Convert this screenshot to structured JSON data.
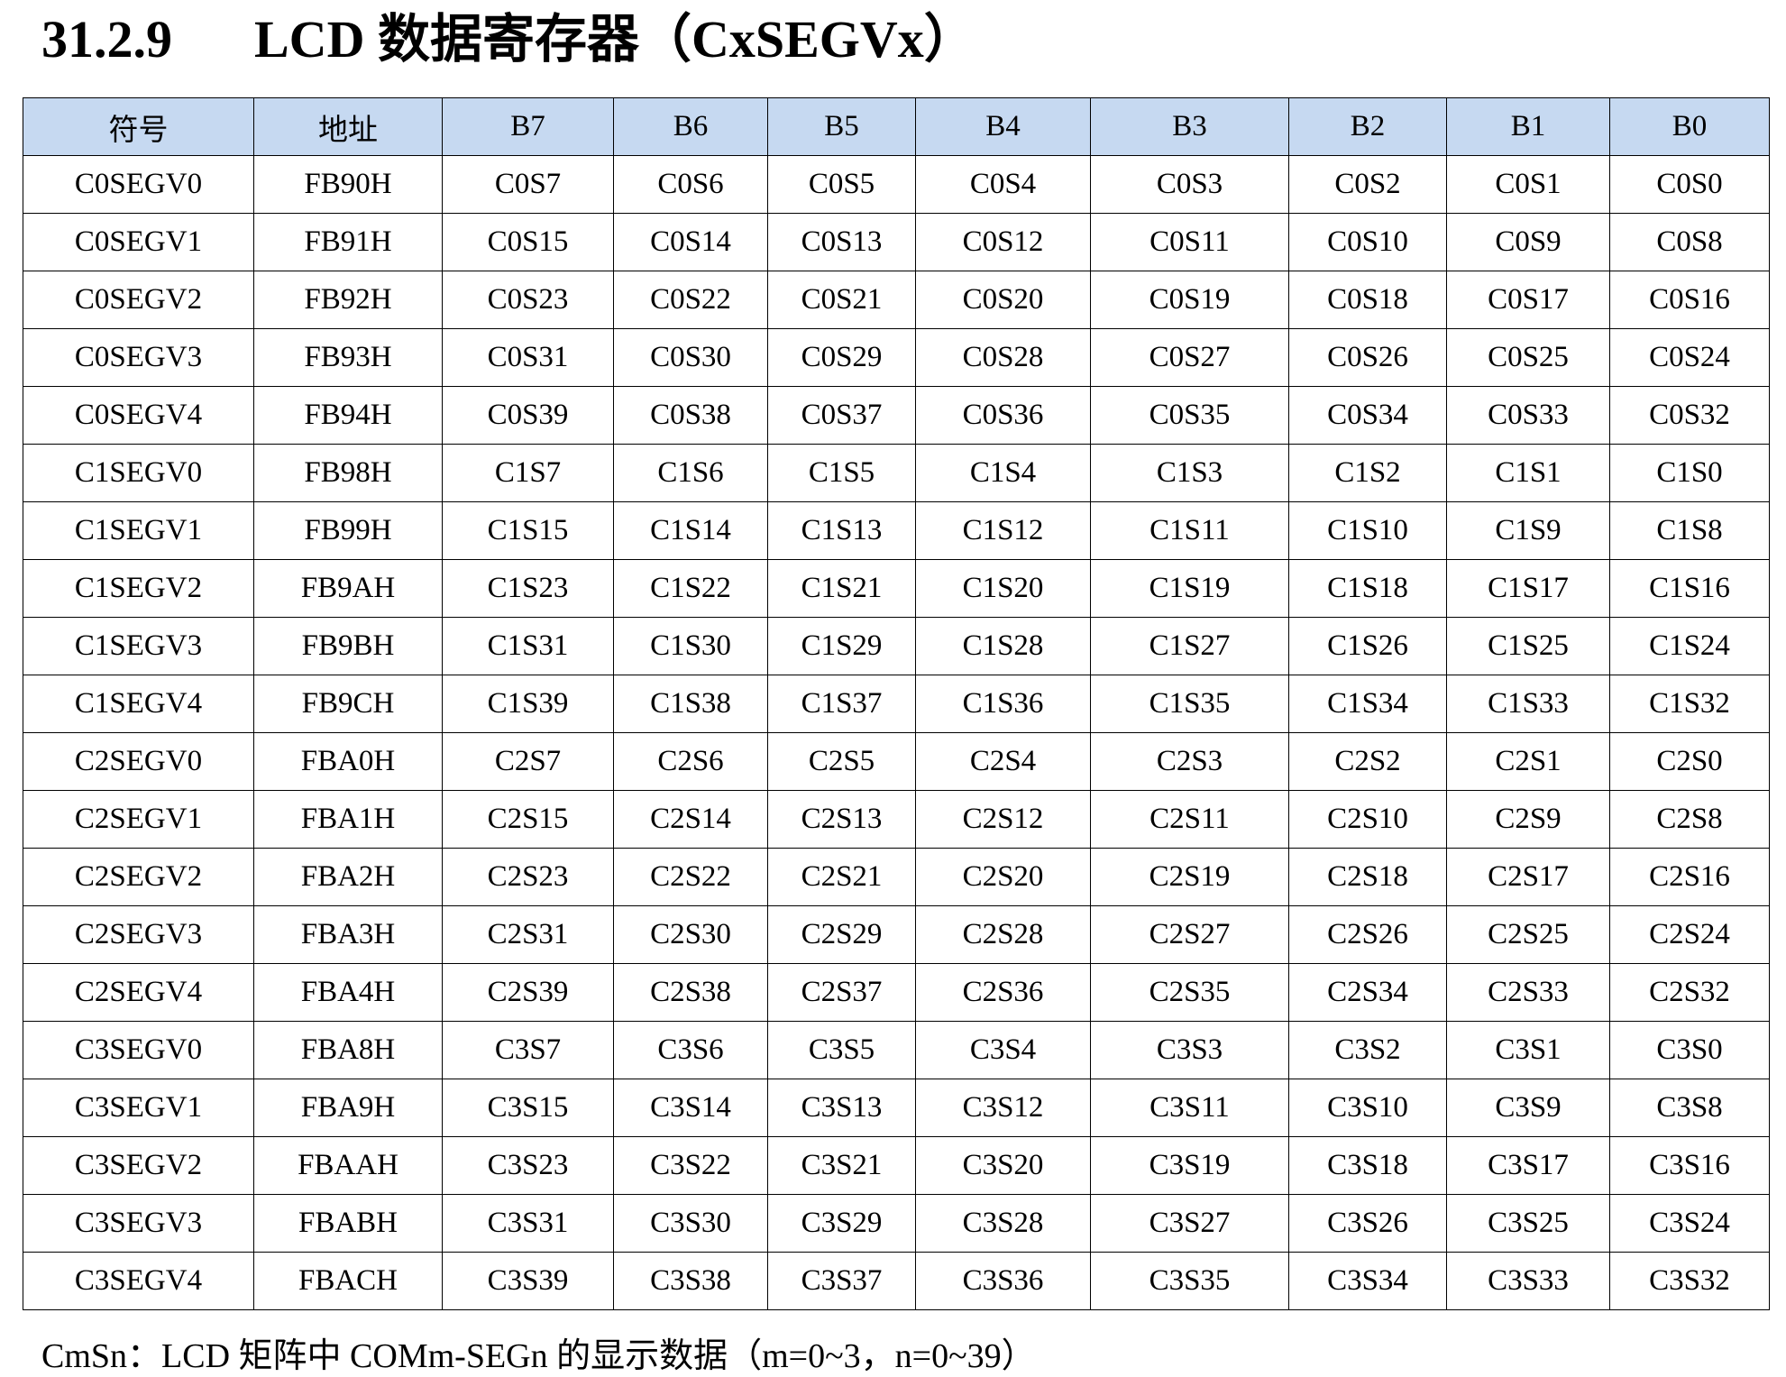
{
  "heading": {
    "number": "31.2.9",
    "title": "LCD 数据寄存器（CxSEGVx）"
  },
  "table": {
    "header": [
      "符号",
      "地址",
      "B7",
      "B6",
      "B5",
      "B4",
      "B3",
      "B2",
      "B1",
      "B0"
    ],
    "rows": [
      [
        "C0SEGV0",
        "FB90H",
        "C0S7",
        "C0S6",
        "C0S5",
        "C0S4",
        "C0S3",
        "C0S2",
        "C0S1",
        "C0S0"
      ],
      [
        "C0SEGV1",
        "FB91H",
        "C0S15",
        "C0S14",
        "C0S13",
        "C0S12",
        "C0S11",
        "C0S10",
        "C0S9",
        "C0S8"
      ],
      [
        "C0SEGV2",
        "FB92H",
        "C0S23",
        "C0S22",
        "C0S21",
        "C0S20",
        "C0S19",
        "C0S18",
        "C0S17",
        "C0S16"
      ],
      [
        "C0SEGV3",
        "FB93H",
        "C0S31",
        "C0S30",
        "C0S29",
        "C0S28",
        "C0S27",
        "C0S26",
        "C0S25",
        "C0S24"
      ],
      [
        "C0SEGV4",
        "FB94H",
        "C0S39",
        "C0S38",
        "C0S37",
        "C0S36",
        "C0S35",
        "C0S34",
        "C0S33",
        "C0S32"
      ],
      [
        "C1SEGV0",
        "FB98H",
        "C1S7",
        "C1S6",
        "C1S5",
        "C1S4",
        "C1S3",
        "C1S2",
        "C1S1",
        "C1S0"
      ],
      [
        "C1SEGV1",
        "FB99H",
        "C1S15",
        "C1S14",
        "C1S13",
        "C1S12",
        "C1S11",
        "C1S10",
        "C1S9",
        "C1S8"
      ],
      [
        "C1SEGV2",
        "FB9AH",
        "C1S23",
        "C1S22",
        "C1S21",
        "C1S20",
        "C1S19",
        "C1S18",
        "C1S17",
        "C1S16"
      ],
      [
        "C1SEGV3",
        "FB9BH",
        "C1S31",
        "C1S30",
        "C1S29",
        "C1S28",
        "C1S27",
        "C1S26",
        "C1S25",
        "C1S24"
      ],
      [
        "C1SEGV4",
        "FB9CH",
        "C1S39",
        "C1S38",
        "C1S37",
        "C1S36",
        "C1S35",
        "C1S34",
        "C1S33",
        "C1S32"
      ],
      [
        "C2SEGV0",
        "FBA0H",
        "C2S7",
        "C2S6",
        "C2S5",
        "C2S4",
        "C2S3",
        "C2S2",
        "C2S1",
        "C2S0"
      ],
      [
        "C2SEGV1",
        "FBA1H",
        "C2S15",
        "C2S14",
        "C2S13",
        "C2S12",
        "C2S11",
        "C2S10",
        "C2S9",
        "C2S8"
      ],
      [
        "C2SEGV2",
        "FBA2H",
        "C2S23",
        "C2S22",
        "C2S21",
        "C2S20",
        "C2S19",
        "C2S18",
        "C2S17",
        "C2S16"
      ],
      [
        "C2SEGV3",
        "FBA3H",
        "C2S31",
        "C2S30",
        "C2S29",
        "C2S28",
        "C2S27",
        "C2S26",
        "C2S25",
        "C2S24"
      ],
      [
        "C2SEGV4",
        "FBA4H",
        "C2S39",
        "C2S38",
        "C2S37",
        "C2S36",
        "C2S35",
        "C2S34",
        "C2S33",
        "C2S32"
      ],
      [
        "C3SEGV0",
        "FBA8H",
        "C3S7",
        "C3S6",
        "C3S5",
        "C3S4",
        "C3S3",
        "C3S2",
        "C3S1",
        "C3S0"
      ],
      [
        "C3SEGV1",
        "FBA9H",
        "C3S15",
        "C3S14",
        "C3S13",
        "C3S12",
        "C3S11",
        "C3S10",
        "C3S9",
        "C3S8"
      ],
      [
        "C3SEGV2",
        "FBAAH",
        "C3S23",
        "C3S22",
        "C3S21",
        "C3S20",
        "C3S19",
        "C3S18",
        "C3S17",
        "C3S16"
      ],
      [
        "C3SEGV3",
        "FBABH",
        "C3S31",
        "C3S30",
        "C3S29",
        "C3S28",
        "C3S27",
        "C3S26",
        "C3S25",
        "C3S24"
      ],
      [
        "C3SEGV4",
        "FBACH",
        "C3S39",
        "C3S38",
        "C3S37",
        "C3S36",
        "C3S35",
        "C3S34",
        "C3S33",
        "C3S32"
      ]
    ]
  },
  "footnote": "CmSn：LCD 矩阵中 COMm-SEGn 的显示数据（m=0~3，n=0~39）"
}
